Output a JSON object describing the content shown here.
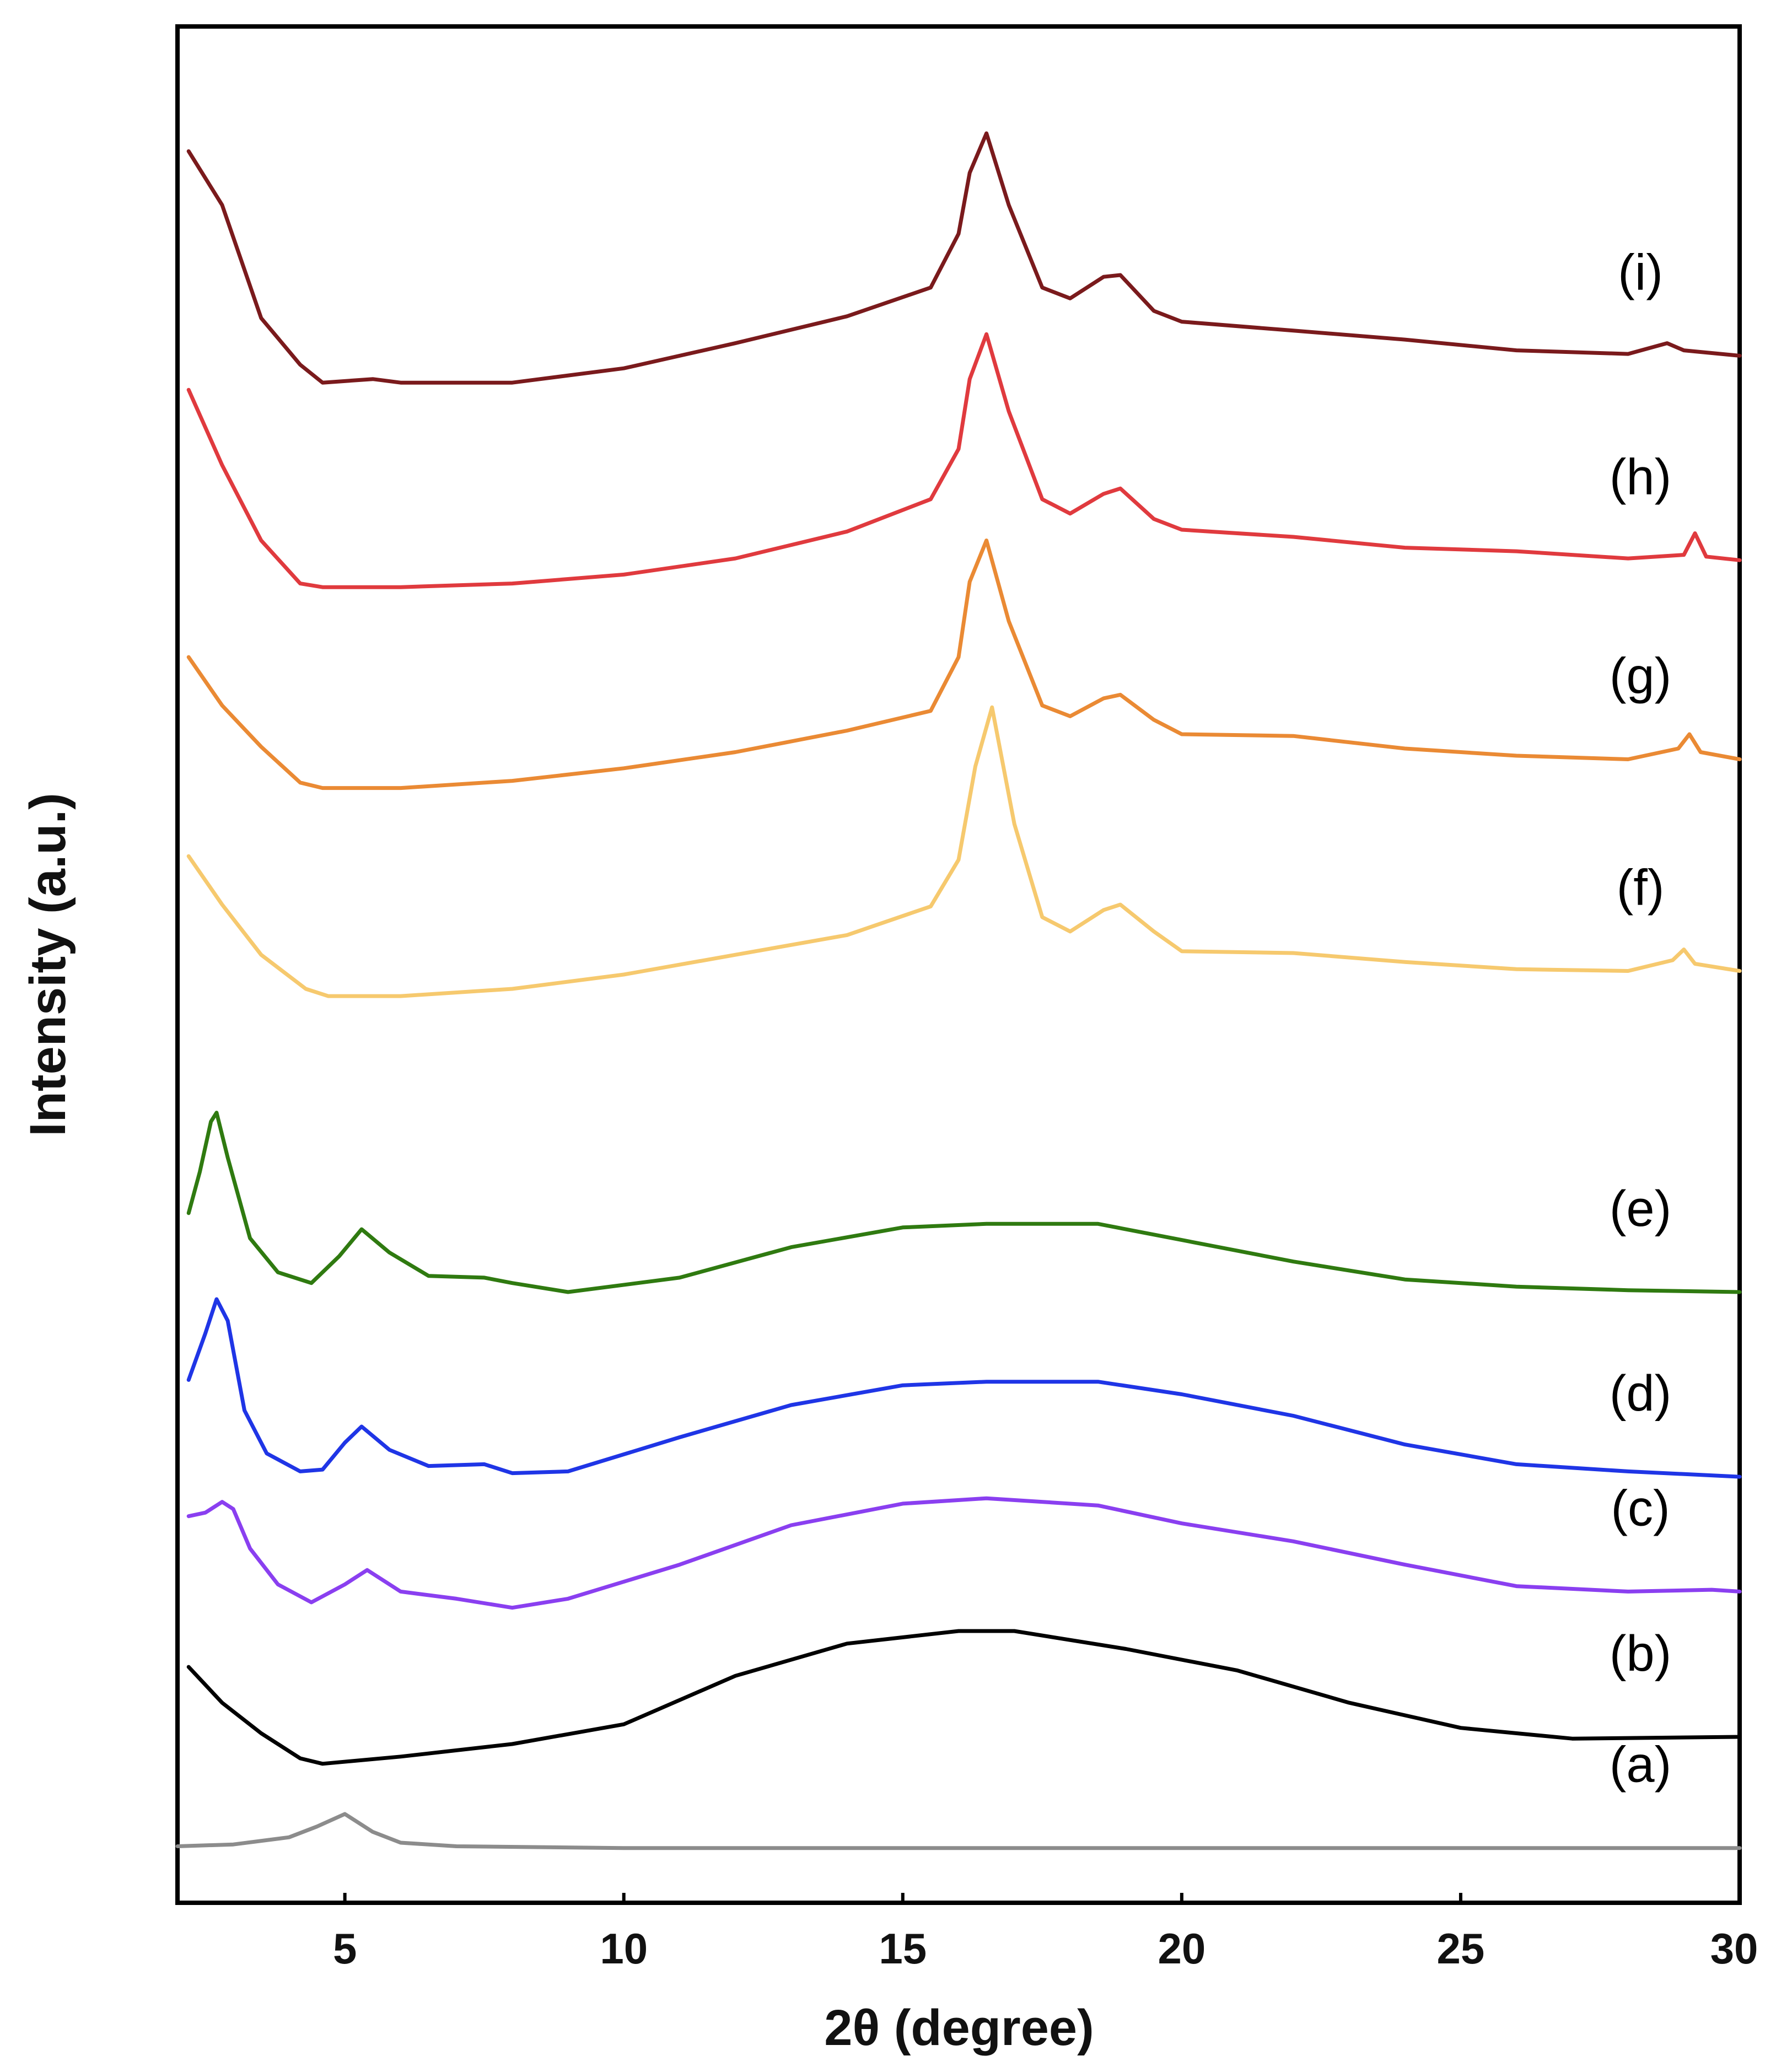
{
  "chart_data": {
    "type": "line",
    "title": "",
    "xlabel": "2θ (degree)",
    "ylabel": "Intensity (a.u.)",
    "xlim": [
      2,
      30
    ],
    "ylim": [
      0,
      100
    ],
    "xticks": [
      5,
      10,
      15,
      20,
      25,
      30
    ],
    "grid": false,
    "legend": "none",
    "series": [
      {
        "name": "(a)",
        "color": "#8c8c8c",
        "points": [
          [
            2,
            1.0
          ],
          [
            3,
            1.1
          ],
          [
            4,
            1.5
          ],
          [
            4.5,
            2.1
          ],
          [
            5,
            2.8
          ],
          [
            5.5,
            1.8
          ],
          [
            6,
            1.2
          ],
          [
            7,
            1.0
          ],
          [
            10,
            0.9
          ],
          [
            20,
            0.9
          ],
          [
            30,
            0.9
          ]
        ]
      },
      {
        "name": "(b)",
        "color": "#000000",
        "points": [
          [
            2.2,
            11.0
          ],
          [
            2.8,
            9.0
          ],
          [
            3.5,
            7.3
          ],
          [
            4.2,
            5.9
          ],
          [
            4.6,
            5.6
          ],
          [
            6,
            6.0
          ],
          [
            8,
            6.7
          ],
          [
            10,
            7.8
          ],
          [
            12,
            10.5
          ],
          [
            14,
            12.3
          ],
          [
            16,
            13.0
          ],
          [
            17,
            13.0
          ],
          [
            19,
            12.0
          ],
          [
            21,
            10.8
          ],
          [
            23,
            9.0
          ],
          [
            25,
            7.6
          ],
          [
            27,
            7.0
          ],
          [
            30,
            7.1
          ]
        ]
      },
      {
        "name": "(c)",
        "color": "#8a3ff0",
        "points": [
          [
            2.2,
            19.4
          ],
          [
            2.5,
            19.6
          ],
          [
            2.8,
            20.2
          ],
          [
            3.0,
            19.8
          ],
          [
            3.3,
            17.6
          ],
          [
            3.8,
            15.6
          ],
          [
            4.4,
            14.6
          ],
          [
            5.0,
            15.6
          ],
          [
            5.4,
            16.4
          ],
          [
            6,
            15.2
          ],
          [
            7,
            14.8
          ],
          [
            8,
            14.3
          ],
          [
            9,
            14.8
          ],
          [
            11,
            16.7
          ],
          [
            13,
            18.9
          ],
          [
            15,
            20.1
          ],
          [
            16.5,
            20.4
          ],
          [
            18.5,
            20.0
          ],
          [
            20,
            19.0
          ],
          [
            22,
            18.0
          ],
          [
            24,
            16.7
          ],
          [
            26,
            15.5
          ],
          [
            28,
            15.2
          ],
          [
            29.5,
            15.3
          ],
          [
            30,
            15.2
          ]
        ]
      },
      {
        "name": "(d)",
        "color": "#1f35e6",
        "points": [
          [
            2.2,
            27.0
          ],
          [
            2.5,
            29.6
          ],
          [
            2.7,
            31.5
          ],
          [
            2.9,
            30.3
          ],
          [
            3.2,
            25.3
          ],
          [
            3.6,
            22.9
          ],
          [
            4.2,
            21.9
          ],
          [
            4.6,
            22.0
          ],
          [
            5.0,
            23.5
          ],
          [
            5.3,
            24.4
          ],
          [
            5.8,
            23.1
          ],
          [
            6.5,
            22.2
          ],
          [
            7.5,
            22.3
          ],
          [
            8,
            21.8
          ],
          [
            9,
            21.9
          ],
          [
            11,
            23.8
          ],
          [
            13,
            25.6
          ],
          [
            15,
            26.7
          ],
          [
            16.5,
            26.9
          ],
          [
            18.5,
            26.9
          ],
          [
            20,
            26.2
          ],
          [
            22,
            25.0
          ],
          [
            24,
            23.4
          ],
          [
            26,
            22.3
          ],
          [
            28,
            21.9
          ],
          [
            30,
            21.6
          ]
        ]
      },
      {
        "name": "(e)",
        "color": "#2f7a10",
        "points": [
          [
            2.2,
            36.3
          ],
          [
            2.4,
            38.6
          ],
          [
            2.6,
            41.4
          ],
          [
            2.7,
            41.9
          ],
          [
            2.9,
            39.4
          ],
          [
            3.3,
            34.9
          ],
          [
            3.8,
            33.0
          ],
          [
            4.4,
            32.4
          ],
          [
            4.9,
            33.9
          ],
          [
            5.3,
            35.4
          ],
          [
            5.8,
            34.1
          ],
          [
            6.5,
            32.8
          ],
          [
            7.5,
            32.7
          ],
          [
            8,
            32.4
          ],
          [
            9,
            31.9
          ],
          [
            11,
            32.7
          ],
          [
            13,
            34.4
          ],
          [
            15,
            35.5
          ],
          [
            16.5,
            35.7
          ],
          [
            18.5,
            35.7
          ],
          [
            20,
            34.8
          ],
          [
            22,
            33.6
          ],
          [
            24,
            32.6
          ],
          [
            26,
            32.2
          ],
          [
            28,
            32.0
          ],
          [
            30,
            31.9
          ]
        ]
      },
      {
        "name": "(f)",
        "color": "#f6c96e",
        "points": [
          [
            2.2,
            56.2
          ],
          [
            2.8,
            53.5
          ],
          [
            3.5,
            50.7
          ],
          [
            4.3,
            48.8
          ],
          [
            4.7,
            48.4
          ],
          [
            6,
            48.4
          ],
          [
            8,
            48.8
          ],
          [
            10,
            49.6
          ],
          [
            12,
            50.7
          ],
          [
            14,
            51.8
          ],
          [
            15.5,
            53.4
          ],
          [
            16.0,
            56.0
          ],
          [
            16.3,
            61.2
          ],
          [
            16.6,
            64.5
          ],
          [
            17.0,
            58.0
          ],
          [
            17.5,
            52.8
          ],
          [
            18.0,
            52.0
          ],
          [
            18.6,
            53.2
          ],
          [
            18.9,
            53.5
          ],
          [
            19.5,
            52.0
          ],
          [
            20,
            50.9
          ],
          [
            22,
            50.8
          ],
          [
            24,
            50.3
          ],
          [
            26,
            49.9
          ],
          [
            28,
            49.8
          ],
          [
            28.8,
            50.4
          ],
          [
            29.0,
            51.0
          ],
          [
            29.2,
            50.2
          ],
          [
            30,
            49.8
          ]
        ]
      },
      {
        "name": "(g)",
        "color": "#ea8a34",
        "points": [
          [
            2.2,
            67.3
          ],
          [
            2.8,
            64.6
          ],
          [
            3.5,
            62.3
          ],
          [
            4.2,
            60.3
          ],
          [
            4.6,
            60.0
          ],
          [
            6,
            60.0
          ],
          [
            8,
            60.4
          ],
          [
            10,
            61.1
          ],
          [
            12,
            62.0
          ],
          [
            14,
            63.2
          ],
          [
            15.5,
            64.3
          ],
          [
            16.0,
            67.3
          ],
          [
            16.2,
            71.5
          ],
          [
            16.5,
            73.8
          ],
          [
            16.9,
            69.3
          ],
          [
            17.5,
            64.6
          ],
          [
            18.0,
            64.0
          ],
          [
            18.6,
            65.0
          ],
          [
            18.9,
            65.2
          ],
          [
            19.5,
            63.8
          ],
          [
            20,
            63.0
          ],
          [
            22,
            62.9
          ],
          [
            24,
            62.2
          ],
          [
            26,
            61.8
          ],
          [
            28,
            61.6
          ],
          [
            28.9,
            62.2
          ],
          [
            29.1,
            63.0
          ],
          [
            29.3,
            62.0
          ],
          [
            30,
            61.6
          ]
        ]
      },
      {
        "name": "(h)",
        "color": "#e03a3e",
        "points": [
          [
            2.2,
            82.2
          ],
          [
            2.8,
            78.0
          ],
          [
            3.5,
            73.8
          ],
          [
            4.2,
            71.4
          ],
          [
            4.6,
            71.2
          ],
          [
            6,
            71.2
          ],
          [
            8,
            71.4
          ],
          [
            10,
            71.9
          ],
          [
            12,
            72.8
          ],
          [
            14,
            74.3
          ],
          [
            15.5,
            76.1
          ],
          [
            16.0,
            78.9
          ],
          [
            16.2,
            82.8
          ],
          [
            16.5,
            85.3
          ],
          [
            16.9,
            81.0
          ],
          [
            17.5,
            76.1
          ],
          [
            18.0,
            75.3
          ],
          [
            18.6,
            76.4
          ],
          [
            18.9,
            76.7
          ],
          [
            19.5,
            75.0
          ],
          [
            20,
            74.4
          ],
          [
            22,
            74.0
          ],
          [
            24,
            73.4
          ],
          [
            26,
            73.2
          ],
          [
            28,
            72.8
          ],
          [
            29.0,
            73.0
          ],
          [
            29.2,
            74.2
          ],
          [
            29.4,
            72.9
          ],
          [
            30,
            72.7
          ]
        ]
      },
      {
        "name": "(i)",
        "color": "#7a1a1c",
        "points": [
          [
            2.2,
            95.5
          ],
          [
            2.8,
            92.5
          ],
          [
            3.5,
            86.2
          ],
          [
            4.2,
            83.6
          ],
          [
            4.6,
            82.6
          ],
          [
            5.5,
            82.8
          ],
          [
            6,
            82.6
          ],
          [
            8,
            82.6
          ],
          [
            10,
            83.4
          ],
          [
            12,
            84.8
          ],
          [
            14,
            86.3
          ],
          [
            15.5,
            87.9
          ],
          [
            16.0,
            90.9
          ],
          [
            16.2,
            94.3
          ],
          [
            16.5,
            96.5
          ],
          [
            16.9,
            92.5
          ],
          [
            17.5,
            87.9
          ],
          [
            18.0,
            87.3
          ],
          [
            18.6,
            88.5
          ],
          [
            18.9,
            88.6
          ],
          [
            19.5,
            86.6
          ],
          [
            20,
            86.0
          ],
          [
            22,
            85.5
          ],
          [
            24,
            85.0
          ],
          [
            26,
            84.4
          ],
          [
            28,
            84.2
          ],
          [
            28.7,
            84.8
          ],
          [
            29.0,
            84.4
          ],
          [
            30,
            84.1
          ]
        ]
      }
    ]
  }
}
